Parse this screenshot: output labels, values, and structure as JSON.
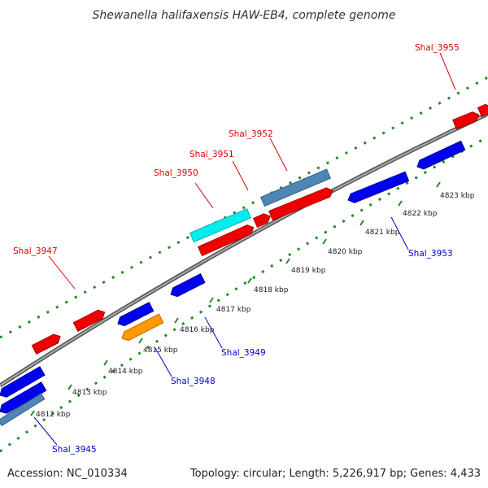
{
  "title": "Shewanella halifaxensis HAW-EB4, complete genome",
  "footer": {
    "accession": "Accession: NC_010334",
    "summary": "Topology: circular; Length: 5,226,917 bp; Genes: 4,433"
  },
  "colors": {
    "forward_label": "#dd0000",
    "reverse_label": "#0000cc",
    "tick": "#228b22",
    "backbone": "#888888"
  },
  "scale_labels": [
    "4812 kbp",
    "4813 kbp",
    "4814 kbp",
    "4815 kbp",
    "4816 kbp",
    "4817 kbp",
    "4818 kbp",
    "4819 kbp",
    "4820 kbp",
    "4821 kbp",
    "4822 kbp",
    "4823 kbp"
  ],
  "gene_labels": {
    "forward": [
      "Shal_3947",
      "Shal_3950",
      "Shal_3951",
      "Shal_3952",
      "Shal_3955"
    ],
    "reverse": [
      "Shal_3945",
      "Shal_3948",
      "Shal_3949",
      "Shal_3953"
    ]
  },
  "gene_colors": [
    "red",
    "cyan",
    "steel-blue",
    "blue",
    "orange"
  ]
}
